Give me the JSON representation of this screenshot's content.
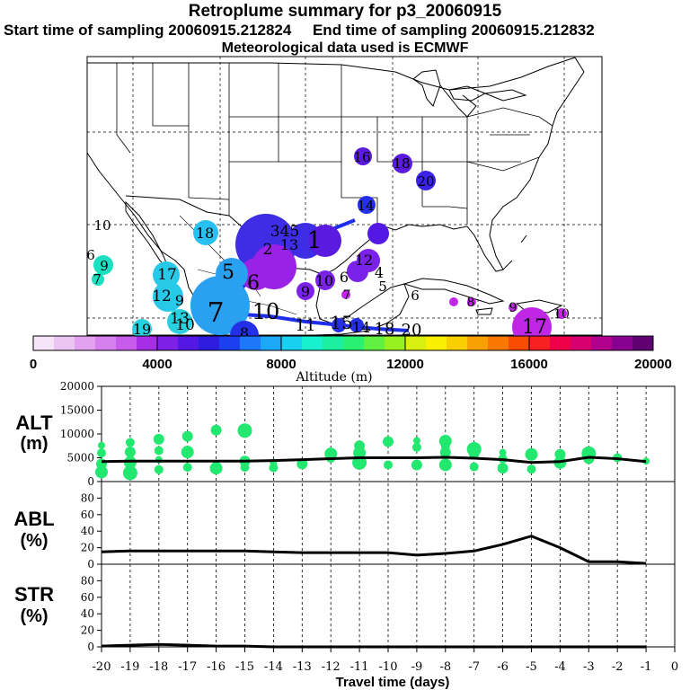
{
  "header": {
    "title": "Retroplume summary for p3_20060915",
    "start_label": "Start time of sampling 20060915.212824",
    "end_label": "End time of sampling 20060915.212832",
    "met_label": "Meteorological data used is ECMWF"
  },
  "map": {
    "region": "Southern United States, Mexico, Gulf of Mexico and Caribbean",
    "plume_labels": [
      {
        "text": "16",
        "color": "#5a1adf"
      },
      {
        "text": "18",
        "color": "#5a1adf"
      },
      {
        "text": "20",
        "color": "#3a22e8"
      },
      {
        "text": "14",
        "color": "#2430e8"
      },
      {
        "text": "10",
        "color": "#ffffff"
      },
      {
        "text": "6",
        "color": "#ffffff"
      },
      {
        "text": "9",
        "color": "#1fd8a8"
      },
      {
        "text": "7",
        "color": "#1fd8a8"
      },
      {
        "text": "18",
        "color": "#28c8e8"
      },
      {
        "text": "17",
        "color": "#28c8e8"
      },
      {
        "text": "12",
        "color": "#28c8e8"
      },
      {
        "text": "9",
        "color": "#28c8e8"
      },
      {
        "text": "13",
        "color": "#28c8e8"
      },
      {
        "text": "10",
        "color": "#28c8e8"
      },
      {
        "text": "19",
        "color": "#28c8e8"
      },
      {
        "text": "345",
        "color": "#3d2ee6"
      },
      {
        "text": "2",
        "color": "#3d2ee6"
      },
      {
        "text": "1",
        "color": "#3d2ee6"
      },
      {
        "text": "13",
        "color": "#3d2ee6"
      },
      {
        "text": "10",
        "color": "#7a22e8"
      },
      {
        "text": "6",
        "color": "#7a22e8"
      },
      {
        "text": "9",
        "color": "#7a22e8"
      },
      {
        "text": "12",
        "color": "#7a22e8"
      },
      {
        "text": "4",
        "color": "#7a22e8"
      },
      {
        "text": "5",
        "color": "#7a22e8"
      },
      {
        "text": "5",
        "color": "#2aa0f0"
      },
      {
        "text": "6",
        "color": "#2aa0f0"
      },
      {
        "text": "7",
        "color": "#2aa0f0"
      },
      {
        "text": "8",
        "color": "#2430e8"
      },
      {
        "text": "10",
        "color": "#2430e8"
      },
      {
        "text": "11",
        "color": "#2430e8"
      },
      {
        "text": "15",
        "color": "#2430e8"
      },
      {
        "text": "14",
        "color": "#2430e8"
      },
      {
        "text": "18",
        "color": "#2430e8"
      },
      {
        "text": "20",
        "color": "#2430e8"
      },
      {
        "text": "6",
        "color": "#7a22e8"
      },
      {
        "text": "7",
        "color": "#c026e6"
      },
      {
        "text": "8",
        "color": "#c026e6"
      },
      {
        "text": "9",
        "color": "#c026e6"
      },
      {
        "text": "10",
        "color": "#c026e6"
      },
      {
        "text": "17",
        "color": "#c026e6"
      }
    ]
  },
  "colorbar": {
    "ticks": [
      "0",
      "4000",
      "8000",
      "12000",
      "16000",
      "20000"
    ],
    "label": "Altitude (m)",
    "colors": [
      "#f6e4f8",
      "#ecc4f4",
      "#e2a2f0",
      "#d680ee",
      "#c85cea",
      "#a62ee6",
      "#7e20e6",
      "#5418e4",
      "#2e1ce0",
      "#1c40f0",
      "#1c78f8",
      "#1ca8f8",
      "#18d0f0",
      "#18f0d0",
      "#1cf0a0",
      "#28f070",
      "#60f040",
      "#98f020",
      "#d8f010",
      "#f8f000",
      "#f8d000",
      "#f8a000",
      "#f87800",
      "#f84c00",
      "#f82020",
      "#f00048",
      "#d80070",
      "#b0008c",
      "#880090",
      "#600070"
    ]
  },
  "chart_data": [
    {
      "type": "scatter",
      "panel": "ALT",
      "ylabel": "ALT (m)",
      "ylim": [
        0,
        20000
      ],
      "yticks": [
        "20000",
        "15000",
        "10000",
        "5000",
        "0"
      ],
      "x": [
        -20,
        -19,
        -18,
        -17,
        -16,
        -15,
        -14,
        -13,
        -12,
        -11,
        -10,
        -9,
        -8,
        -7,
        -6,
        -5,
        -4,
        -3,
        -2,
        -1
      ],
      "median_line": [
        4200,
        4300,
        4300,
        4300,
        4300,
        4300,
        4400,
        4600,
        4800,
        5000,
        5000,
        5000,
        5100,
        4900,
        4600,
        4000,
        4200,
        5100,
        4800,
        4200
      ],
      "points": [
        {
          "x": -20,
          "y": 7600
        },
        {
          "x": -20,
          "y": 6000
        },
        {
          "x": -20,
          "y": 3700
        },
        {
          "x": -20,
          "y": 2000
        },
        {
          "x": -19,
          "y": 8200
        },
        {
          "x": -19,
          "y": 6200
        },
        {
          "x": -19,
          "y": 4000
        },
        {
          "x": -19,
          "y": 1800
        },
        {
          "x": -18,
          "y": 8900
        },
        {
          "x": -18,
          "y": 6500
        },
        {
          "x": -18,
          "y": 4600
        },
        {
          "x": -18,
          "y": 2500
        },
        {
          "x": -17,
          "y": 9500
        },
        {
          "x": -17,
          "y": 6200
        },
        {
          "x": -17,
          "y": 3000
        },
        {
          "x": -16,
          "y": 10800
        },
        {
          "x": -16,
          "y": 2800
        },
        {
          "x": -15,
          "y": 10700
        },
        {
          "x": -15,
          "y": 4300
        },
        {
          "x": -15,
          "y": 3000
        },
        {
          "x": -14,
          "y": 4000
        },
        {
          "x": -14,
          "y": 2900
        },
        {
          "x": -13,
          "y": 3700
        },
        {
          "x": -12,
          "y": 5800
        },
        {
          "x": -12,
          "y": 4900
        },
        {
          "x": -11,
          "y": 7500
        },
        {
          "x": -11,
          "y": 6000
        },
        {
          "x": -11,
          "y": 4000
        },
        {
          "x": -10,
          "y": 8400
        },
        {
          "x": -10,
          "y": 3500
        },
        {
          "x": -9,
          "y": 8600
        },
        {
          "x": -9,
          "y": 7200
        },
        {
          "x": -9,
          "y": 3500
        },
        {
          "x": -8,
          "y": 8500
        },
        {
          "x": -8,
          "y": 7400
        },
        {
          "x": -8,
          "y": 6100
        },
        {
          "x": -8,
          "y": 3500
        },
        {
          "x": -7,
          "y": 6800
        },
        {
          "x": -7,
          "y": 5900
        },
        {
          "x": -7,
          "y": 3100
        },
        {
          "x": -6,
          "y": 6100
        },
        {
          "x": -6,
          "y": 4800
        },
        {
          "x": -6,
          "y": 2800
        },
        {
          "x": -5,
          "y": 5700
        },
        {
          "x": -5,
          "y": 2600
        },
        {
          "x": -4,
          "y": 5700
        },
        {
          "x": -4,
          "y": 4000
        },
        {
          "x": -3,
          "y": 5900
        },
        {
          "x": -3,
          "y": 4800
        },
        {
          "x": -2,
          "y": 5000
        },
        {
          "x": -1,
          "y": 4300
        }
      ],
      "point_color": "#22e870"
    },
    {
      "type": "line",
      "panel": "ABL",
      "ylabel": "ABL (%)",
      "ylim": [
        0,
        100
      ],
      "yticks": [
        "80",
        "60",
        "40",
        "20",
        "0"
      ],
      "x": [
        -20,
        -19,
        -18,
        -17,
        -16,
        -15,
        -14,
        -13,
        -12,
        -11,
        -10,
        -9,
        -8,
        -7,
        -6,
        -5,
        -4,
        -3,
        -2,
        -1
      ],
      "values": [
        15,
        16,
        16,
        16,
        16,
        16,
        15,
        14,
        14,
        14,
        14,
        11,
        13,
        16,
        24,
        34,
        20,
        3,
        3,
        1
      ]
    },
    {
      "type": "line",
      "panel": "STR",
      "ylabel": "STR (%)",
      "ylim": [
        0,
        100
      ],
      "yticks": [
        "80",
        "60",
        "40",
        "20",
        "0"
      ],
      "x": [
        -20,
        -19,
        -18,
        -17,
        -16,
        -15,
        -14,
        -13,
        -12,
        -11,
        -10,
        -9,
        -8,
        -7,
        -6,
        -5,
        -4,
        -3,
        -2,
        -1
      ],
      "values": [
        1,
        2,
        3,
        2,
        1,
        1,
        0,
        0,
        0,
        0,
        0,
        0,
        0,
        0,
        0,
        0,
        0,
        0,
        0,
        0
      ]
    }
  ],
  "xaxis": {
    "ticks": [
      "-20",
      "-19",
      "-18",
      "-17",
      "-16",
      "-15",
      "-14",
      "-13",
      "-12",
      "-11",
      "-10",
      "-9",
      "-8",
      "-7",
      "-6",
      "-5",
      "-4",
      "-3",
      "-2",
      "-1",
      "0"
    ],
    "label": "Travel time (days)"
  },
  "panels": {
    "alt_title": "ALT",
    "alt_unit": "(m)",
    "abl_title": "ABL",
    "abl_unit": "(%)",
    "str_title": "STR",
    "str_unit": "(%)"
  }
}
